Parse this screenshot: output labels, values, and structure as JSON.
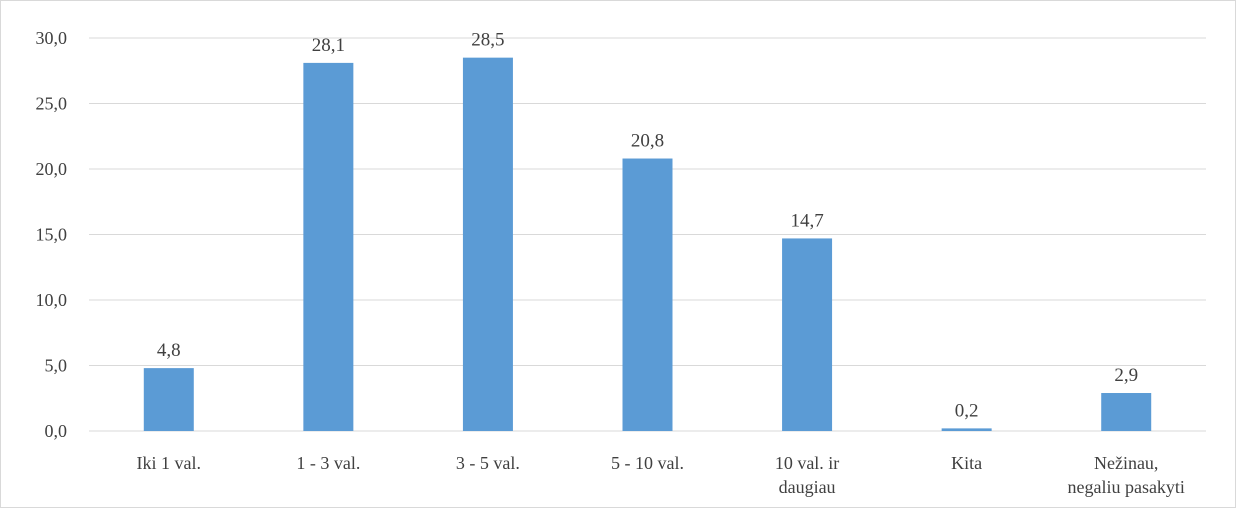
{
  "chart_data": {
    "type": "bar",
    "title": "",
    "xlabel": "",
    "ylabel": "",
    "categories": [
      [
        "Iki 1 val."
      ],
      [
        "1 - 3 val."
      ],
      [
        "3 - 5 val."
      ],
      [
        "5 - 10 val."
      ],
      [
        "10 val. ir",
        "daugiau"
      ],
      [
        "Kita"
      ],
      [
        "Nežinau,",
        "negaliu pasakyti"
      ]
    ],
    "values": [
      4.8,
      28.1,
      28.5,
      20.8,
      14.7,
      0.2,
      2.9
    ],
    "data_labels": [
      "4,8",
      "28,1",
      "28,5",
      "20,8",
      "14,7",
      "0,2",
      "2,9"
    ],
    "ylim": [
      0,
      30
    ],
    "yticks": [
      0,
      5,
      10,
      15,
      20,
      25,
      30
    ],
    "ytick_labels": [
      "0,0",
      "5,0",
      "10,0",
      "15,0",
      "20,0",
      "25,0",
      "30,0"
    ],
    "grid": true,
    "legend": "none",
    "colors": {
      "bar": "#5b9bd5",
      "grid": "#d9d9d9",
      "text": "#404040"
    }
  }
}
